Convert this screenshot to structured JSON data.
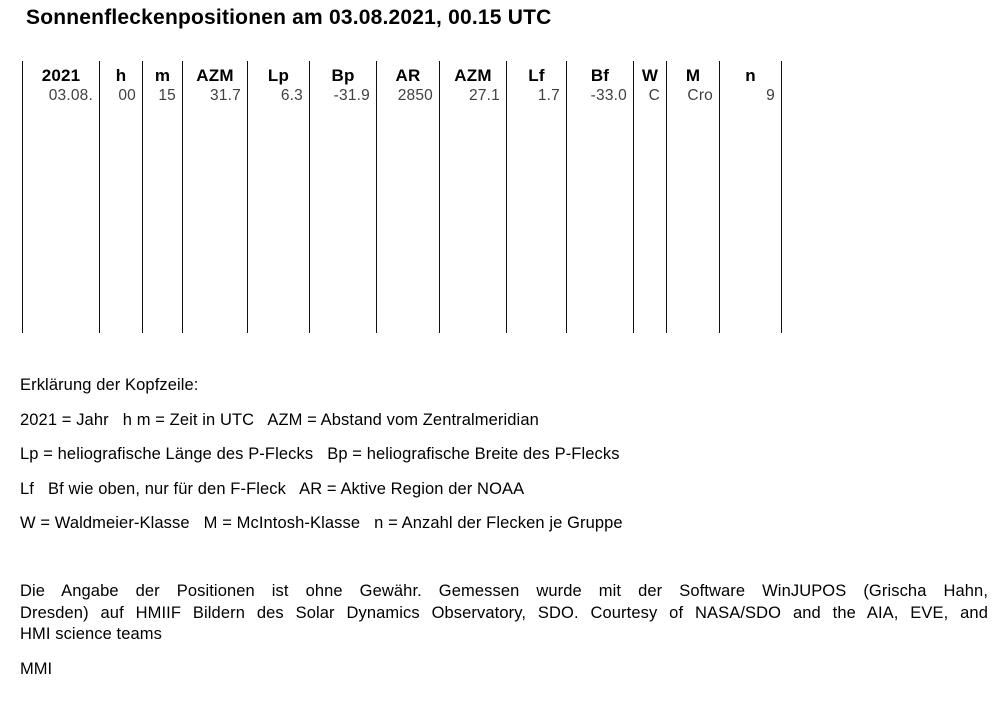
{
  "title": "Sonnenfleckenpositionen am 03.08.2021, 00.15 UTC",
  "table": {
    "columns": [
      {
        "header": "2021",
        "value": "03.08."
      },
      {
        "header": "h",
        "value": "00"
      },
      {
        "header": "m",
        "value": "15"
      },
      {
        "header": "AZM",
        "value": "31.7"
      },
      {
        "header": "Lp",
        "value": "6.3"
      },
      {
        "header": "Bp",
        "value": "-31.9"
      },
      {
        "header": "AR",
        "value": "2850"
      },
      {
        "header": "AZM",
        "value": "27.1"
      },
      {
        "header": "Lf",
        "value": "1.7"
      },
      {
        "header": "Bf",
        "value": "-33.0"
      },
      {
        "header": "W",
        "value": "C"
      },
      {
        "header": "M",
        "value": "Cro"
      },
      {
        "header": "n",
        "value": "9"
      }
    ]
  },
  "explanation": {
    "heading": "Erklärung der Kopfzeile:",
    "lines": [
      "2021 = Jahr   h m = Zeit in UTC   AZM = Abstand vom Zentralmeridian",
      "Lp = heliografische Länge des P-Flecks   Bp = heliografische Breite des P-Flecks",
      "Lf   Bf wie oben, nur für den F-Fleck   AR = Aktive Region der NOAA",
      "W = Waldmeier-Klasse   M = McIntosh-Klasse   n = Anzahl der Flecken je Gruppe"
    ]
  },
  "disclaimer_lines": [
    "Die Angabe der Positionen ist ohne Gewähr. Gemessen wurde mit der Software WinJUPOS (Grischa Hahn,",
    "Dresden) auf HMIIF Bildern des Solar Dynamics Observatory, SDO. Courtesy of NASA/SDO and the AIA, EVE, and",
    "HMI science teams"
  ],
  "signature": "MMI",
  "colors": {
    "background": "#ffffff",
    "heading_text": "#000000",
    "value_text": "#404040",
    "table_line": "#111111"
  }
}
